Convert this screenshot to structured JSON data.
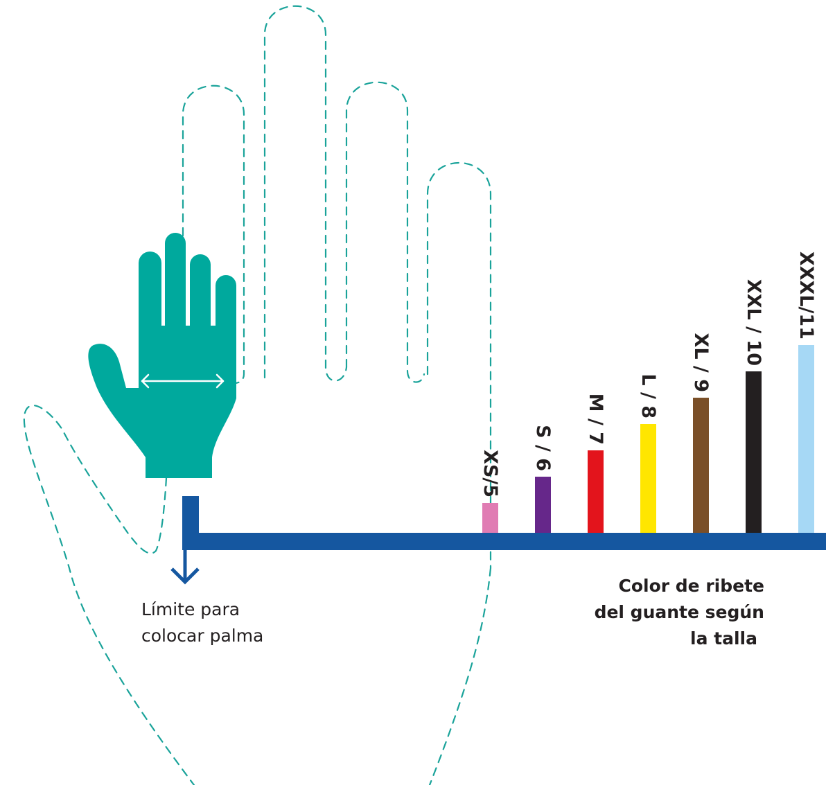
{
  "colors": {
    "hand": "#00a99d",
    "ruler": "#1557a0",
    "outline": "#1aa39a",
    "text": "#231f20"
  },
  "palm_limit": {
    "line1": "Límite para",
    "line2": "colocar palma"
  },
  "trim_color": {
    "line1": "Color de ribete",
    "line2": "del guante según",
    "line3": "la talla"
  },
  "sizes": [
    {
      "label": "XS/5",
      "color": "#e07cb3",
      "level": 1
    },
    {
      "label": "S / 6",
      "color": "#66278a",
      "level": 2
    },
    {
      "label": "M / 7",
      "color": "#e3141c",
      "level": 3
    },
    {
      "label": "L / 8",
      "color": "#ffe600",
      "level": 4
    },
    {
      "label": "XL / 9",
      "color": "#7a4f28",
      "level": 5
    },
    {
      "label": "XXL / 10",
      "color": "#231f20",
      "level": 6
    },
    {
      "label": "XXXL/11",
      "color": "#a6d8f5",
      "level": 7
    }
  ],
  "icons": {
    "hand": "hand-icon",
    "width_arrow": "double-arrow-icon",
    "limit_arrow": "arrow-down-icon"
  }
}
